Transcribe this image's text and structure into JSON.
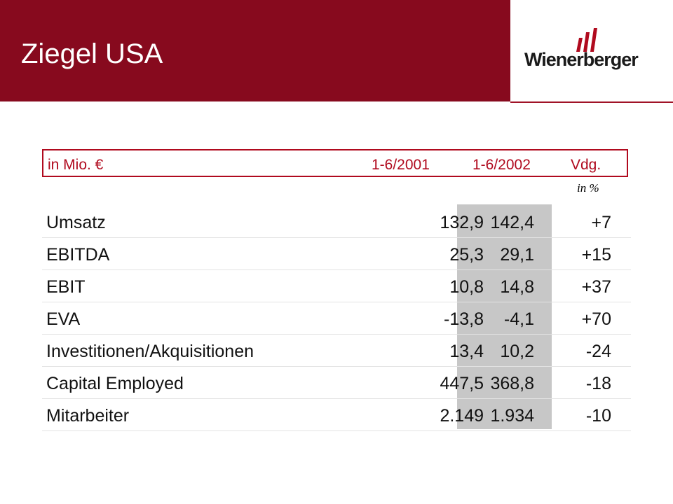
{
  "slide": {
    "title": "Ziegel USA",
    "brand": "Wienerberger",
    "accent_color": "#870a1e"
  },
  "table": {
    "headers": {
      "unit": "in Mio. €",
      "col1": "1-6/2001",
      "col2": "1-6/2002",
      "col3": "Vdg."
    },
    "change_unit": "in %",
    "rows": [
      {
        "label": "Umsatz",
        "v2001": "132,9",
        "v2002": "142,4",
        "change": "+7"
      },
      {
        "label": "EBITDA",
        "v2001": "25,3",
        "v2002": "29,1",
        "change": "+15"
      },
      {
        "label": "EBIT",
        "v2001": "10,8",
        "v2002": "14,8",
        "change": "+37"
      },
      {
        "label": "EVA",
        "v2001": "-13,8",
        "v2002": "-4,1",
        "change": "+70"
      },
      {
        "label": "Investitionen/Akquisitionen",
        "v2001": "13,4",
        "v2002": "10,2",
        "change": "-24"
      },
      {
        "label": "Capital Employed",
        "v2001": "447,5",
        "v2002": "368,8",
        "change": "-18"
      },
      {
        "label": "Mitarbeiter",
        "v2001": "2.149",
        "v2002": "1.934",
        "change": "-10"
      }
    ]
  }
}
